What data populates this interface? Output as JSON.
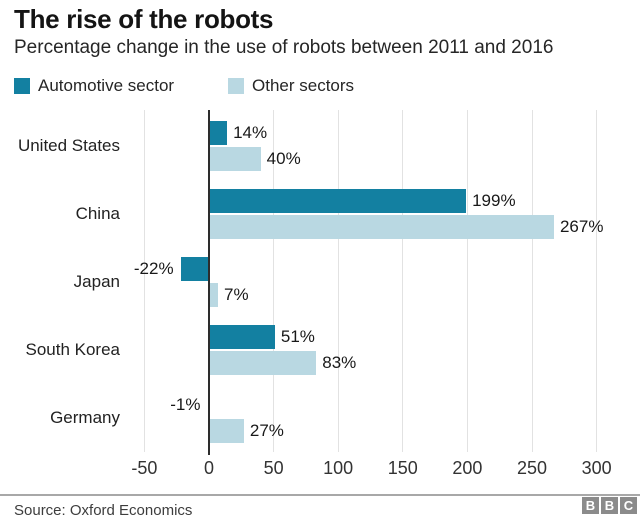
{
  "header": {
    "title": "The rise of the robots",
    "subtitle": "Percentage change in the use of robots between 2011 and 2016"
  },
  "legend": [
    {
      "label": "Automotive sector",
      "color": "#1380A1"
    },
    {
      "label": "Other sectors",
      "color": "#B9D8E2"
    }
  ],
  "chart_data": {
    "type": "bar",
    "orientation": "horizontal",
    "title": "The rise of the robots",
    "subtitle": "Percentage change in the use of robots between 2011 and 2016",
    "categories": [
      "United States",
      "China",
      "Japan",
      "South Korea",
      "Germany"
    ],
    "series": [
      {
        "name": "Automotive sector",
        "color": "#1380A1",
        "values": [
          14,
          199,
          -22,
          51,
          -1
        ]
      },
      {
        "name": "Other sectors",
        "color": "#B9D8E2",
        "values": [
          40,
          267,
          7,
          83,
          27
        ]
      }
    ],
    "value_suffix": "%",
    "xlim": [
      -50,
      300
    ],
    "xticks": [
      -50,
      0,
      50,
      100,
      150,
      200,
      250,
      300
    ],
    "grid": true,
    "legend_position": "top"
  },
  "footer": {
    "source": "Source: Oxford Economics",
    "logo_letters": [
      "B",
      "B",
      "C"
    ]
  },
  "colors": {
    "automotive": "#1380A1",
    "other": "#B9D8E2",
    "gridline": "#e2e2e2",
    "axis": "#2d2d2d",
    "logo_gray": "#8b8b8b"
  }
}
